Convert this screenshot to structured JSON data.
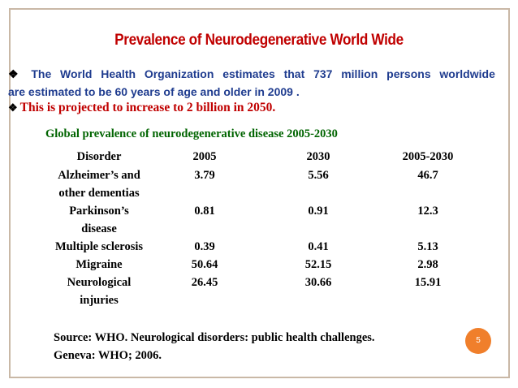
{
  "slide": {
    "title": "Prevalence of Neurodegenerative World Wide",
    "para1_line1_words": [
      "The",
      "World",
      "Health",
      "Organization",
      "estimates",
      "that",
      "737",
      "million",
      "persons",
      "worldwide"
    ],
    "para1_line2": "are estimated to be 60 years of age and older in 2009 .",
    "para2": "This is projected to increase to 2 billion in 2050.",
    "bullet_glyph": "❖",
    "table_caption": "Global prevalence of neurodegenerative disease 2005-2030",
    "table": {
      "headers": [
        "Disorder",
        "2005",
        "2030",
        "2005-2030"
      ],
      "rows": [
        {
          "disorder_lines": [
            "Alzheimer’s and",
            "other dementias"
          ],
          "v2005": "3.79",
          "v2030": "5.56",
          "change": "46.7"
        },
        {
          "disorder_lines": [
            "Parkinson’s",
            "disease"
          ],
          "v2005": "0.81",
          "v2030": "0.91",
          "change": "12.3"
        },
        {
          "disorder_lines": [
            "Multiple sclerosis"
          ],
          "v2005": "0.39",
          "v2030": "0.41",
          "change": "5.13"
        },
        {
          "disorder_lines": [
            "Migraine"
          ],
          "v2005": "50.64",
          "v2030": "52.15",
          "change": "2.98"
        },
        {
          "disorder_lines": [
            "Neurological",
            "injuries"
          ],
          "v2005": "26.45",
          "v2030": "30.66",
          "change": "15.91"
        }
      ]
    },
    "source_line1": "Source:  WHO. Neurological disorders: public health challenges.",
    "source_line2": "Geneva: WHO; 2006.",
    "page_number": "5"
  },
  "colors": {
    "title": "#c00000",
    "para1": "#1f3c8f",
    "para2": "#c00000",
    "caption": "#006400",
    "page_badge": "#f07f2b",
    "border": "#c9b8a6"
  }
}
